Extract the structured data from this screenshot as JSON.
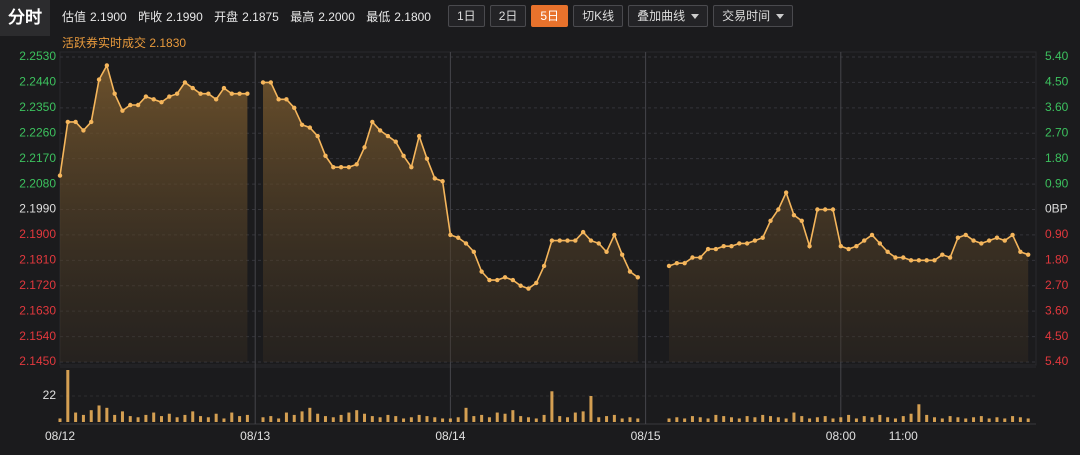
{
  "header": {
    "tab": "分时",
    "quote": [
      {
        "label": "估值",
        "value": "2.1900"
      },
      {
        "label": "昨收",
        "value": "2.1990"
      },
      {
        "label": "开盘",
        "value": "2.1875"
      },
      {
        "label": "最高",
        "value": "2.2000"
      },
      {
        "label": "最低",
        "value": "2.1800"
      }
    ],
    "buttons": [
      {
        "label": "1日"
      },
      {
        "label": "2日"
      },
      {
        "label": "5日",
        "active": true
      },
      {
        "label": "切K线"
      },
      {
        "label": "叠加曲线",
        "dropdown": true
      },
      {
        "label": "交易时间",
        "dropdown": true
      }
    ],
    "last_trade": {
      "label": "活跃券实时成交",
      "value": "2.1830"
    }
  },
  "chart_data": {
    "type": "line",
    "color": "#f5b65c",
    "grid": true,
    "upper_color": "#3cc15e",
    "lower_color": "#e2383d",
    "mid_color": "#dddddd",
    "xlim": [
      0,
      125
    ],
    "xticks": [
      {
        "value": 0,
        "label": "08/12"
      },
      {
        "value": 25,
        "label": "08/13"
      },
      {
        "value": 50,
        "label": "08/14"
      },
      {
        "value": 75,
        "label": "08/15"
      },
      {
        "value": 100,
        "label": "08:00"
      },
      {
        "value": 108,
        "label": "11:00"
      }
    ],
    "ylim": [
      2.145,
      2.253
    ],
    "yticks": [
      {
        "value": 2.253,
        "label": "2.2530"
      },
      {
        "value": 2.244,
        "label": "2.2440"
      },
      {
        "value": 2.235,
        "label": "2.2350"
      },
      {
        "value": 2.226,
        "label": "2.2260"
      },
      {
        "value": 2.217,
        "label": "2.2170"
      },
      {
        "value": 2.208,
        "label": "2.2080"
      },
      {
        "value": 2.199,
        "label": "2.1990"
      },
      {
        "value": 2.19,
        "label": "2.1900"
      },
      {
        "value": 2.181,
        "label": "2.1810"
      },
      {
        "value": 2.172,
        "label": "2.1720"
      },
      {
        "value": 2.163,
        "label": "2.1630"
      },
      {
        "value": 2.154,
        "label": "2.1540"
      },
      {
        "value": 2.145,
        "label": "2.1450"
      }
    ],
    "y2lim": [
      -5.4,
      5.4
    ],
    "y2ticks": [
      {
        "value": 5.4,
        "label": "5.40"
      },
      {
        "value": 4.5,
        "label": "4.50"
      },
      {
        "value": 3.6,
        "label": "3.60"
      },
      {
        "value": 2.7,
        "label": "2.70"
      },
      {
        "value": 1.8,
        "label": "1.80"
      },
      {
        "value": 0.9,
        "label": "0.90"
      },
      {
        "value": 0,
        "label": "0BP"
      },
      {
        "value": -0.9,
        "label": "0.90"
      },
      {
        "value": -1.8,
        "label": "1.80"
      },
      {
        "value": -2.7,
        "label": "2.70"
      },
      {
        "value": -3.6,
        "label": "3.60"
      },
      {
        "value": -4.5,
        "label": "4.50"
      },
      {
        "value": -5.4,
        "label": "5.40"
      }
    ],
    "values": [
      2.211,
      2.23,
      2.23,
      2.227,
      2.23,
      2.245,
      2.25,
      2.24,
      2.234,
      2.236,
      2.236,
      2.239,
      2.238,
      2.237,
      2.239,
      2.24,
      2.244,
      2.242,
      2.24,
      2.24,
      2.238,
      2.242,
      2.24,
      2.24,
      2.24,
      null,
      2.244,
      2.244,
      2.238,
      2.238,
      2.235,
      2.229,
      2.228,
      2.225,
      2.218,
      2.214,
      2.214,
      2.214,
      2.215,
      2.221,
      2.23,
      2.227,
      2.225,
      2.223,
      2.218,
      2.214,
      2.225,
      2.217,
      2.21,
      2.209,
      2.19,
      2.189,
      2.187,
      2.184,
      2.177,
      2.174,
      2.174,
      2.175,
      2.174,
      2.172,
      2.171,
      2.173,
      2.179,
      2.188,
      2.188,
      2.188,
      2.188,
      2.191,
      2.188,
      2.187,
      2.184,
      2.19,
      2.183,
      2.177,
      2.175,
      null,
      null,
      null,
      2.179,
      2.18,
      2.18,
      2.182,
      2.182,
      2.185,
      2.185,
      2.186,
      2.186,
      2.187,
      2.187,
      2.188,
      2.189,
      2.195,
      2.199,
      2.205,
      2.197,
      2.195,
      2.186,
      2.199,
      2.199,
      2.199,
      2.186,
      2.185,
      2.186,
      2.188,
      2.19,
      2.187,
      2.184,
      2.182,
      2.182,
      2.181,
      2.181,
      2.181,
      2.181,
      2.183,
      2.182,
      2.189,
      2.19,
      2.188,
      2.187,
      2.188,
      2.189,
      2.188,
      2.19,
      2.184,
      2.183
    ],
    "volume": {
      "ylim": [
        0,
        44
      ],
      "yticks": [
        22
      ],
      "values": [
        3,
        44,
        8,
        6,
        10,
        14,
        12,
        6,
        9,
        5,
        4,
        6,
        8,
        5,
        7,
        4,
        6,
        9,
        5,
        4,
        7,
        3,
        8,
        5,
        6,
        null,
        4,
        5,
        3,
        8,
        6,
        9,
        12,
        7,
        5,
        4,
        6,
        8,
        10,
        7,
        5,
        4,
        6,
        5,
        3,
        4,
        6,
        5,
        4,
        3,
        3,
        4,
        12,
        5,
        6,
        4,
        8,
        7,
        10,
        5,
        4,
        3,
        6,
        26,
        5,
        4,
        8,
        9,
        22,
        4,
        5,
        6,
        3,
        4,
        3,
        null,
        null,
        null,
        3,
        4,
        3,
        5,
        4,
        3,
        6,
        5,
        4,
        3,
        5,
        4,
        6,
        5,
        4,
        3,
        8,
        5,
        3,
        4,
        5,
        3,
        4,
        6,
        3,
        5,
        4,
        6,
        4,
        3,
        5,
        7,
        15,
        6,
        4,
        3,
        5,
        4,
        3,
        4,
        5,
        3,
        4,
        3,
        5,
        4,
        3
      ]
    }
  }
}
